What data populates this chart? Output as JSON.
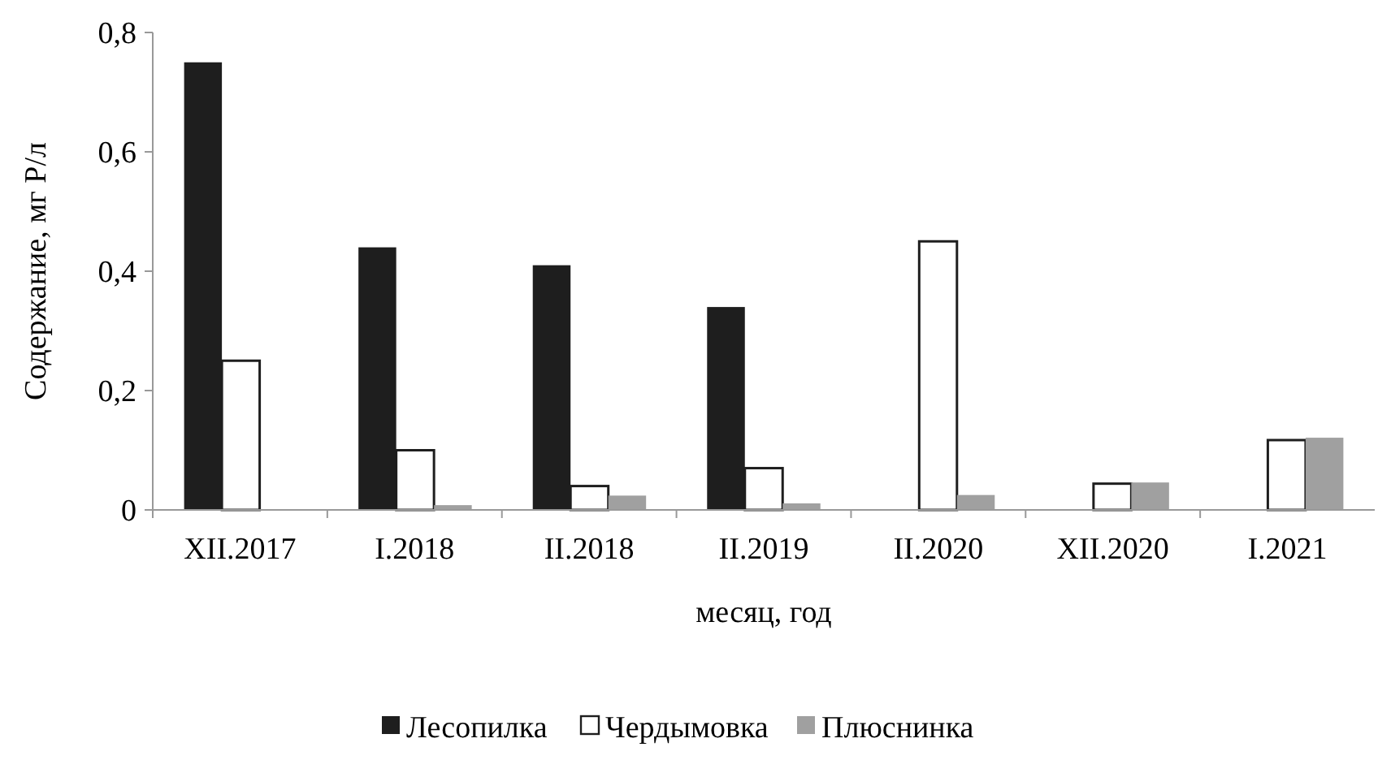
{
  "chart_data": {
    "type": "bar",
    "xlabel": "месяц, год",
    "ylabel": "Содержание, мг Р/л",
    "categories": [
      "XII.2017",
      "I.2018",
      "II.2018",
      "II.2019",
      "II.2020",
      "XII.2020",
      "I.2021"
    ],
    "series": [
      {
        "name": "Лесопилка",
        "color": "#1e1e1e",
        "values": [
          0.75,
          0.44,
          0.41,
          0.34,
          null,
          null,
          null
        ]
      },
      {
        "name": "Чердымовка",
        "color": "#ffffff",
        "values": [
          0.25,
          0.1,
          0.04,
          0.07,
          0.45,
          0.044,
          0.117
        ]
      },
      {
        "name": "Плюснинка",
        "color": "#a0a0a0",
        "values": [
          null,
          0.008,
          0.024,
          0.011,
          0.025,
          0.046,
          0.121
        ]
      }
    ],
    "ylim": [
      0,
      0.8
    ],
    "yticks": [
      {
        "value": 0,
        "label": "0"
      },
      {
        "value": 0.2,
        "label": "0,2"
      },
      {
        "value": 0.4,
        "label": "0,4"
      },
      {
        "value": 0.6,
        "label": "0,6"
      },
      {
        "value": 0.8,
        "label": "0,8"
      }
    ],
    "legend": "bottom",
    "grid": false
  }
}
